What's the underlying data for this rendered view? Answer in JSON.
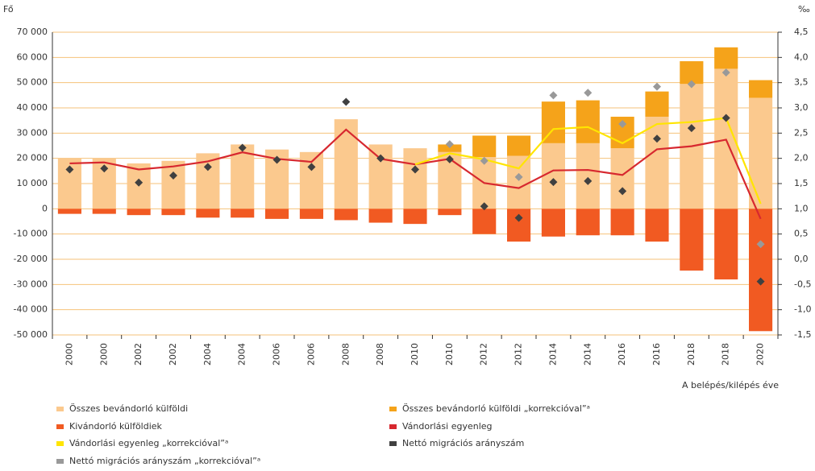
{
  "chart_data": {
    "type": "bar",
    "y_label": "Fő",
    "y2_label": "‰",
    "x_label": "A belépés/kilépés éve",
    "categories": [
      "2000",
      "2000",
      "2002",
      "2002",
      "2004",
      "2004",
      "2006",
      "2006",
      "2008",
      "2008",
      "2010",
      "2010",
      "2012",
      "2012",
      "2014",
      "2014",
      "2016",
      "2016",
      "2018",
      "2018",
      "2020"
    ],
    "ylim": [
      -50000,
      70000
    ],
    "yticks": [
      {
        "value": -50000,
        "label": "-50 000"
      },
      {
        "value": -40000,
        "label": "-40 000"
      },
      {
        "value": -30000,
        "label": "-30 000"
      },
      {
        "value": -20000,
        "label": "-20 000"
      },
      {
        "value": -10000,
        "label": "-10 000"
      },
      0,
      {
        "value": 10000,
        "label": "10 000"
      },
      {
        "value": 20000,
        "label": "20 000"
      },
      {
        "value": 30000,
        "label": "30 000"
      },
      {
        "value": 40000,
        "label": "40 000"
      },
      {
        "value": 50000,
        "label": "50 000"
      },
      {
        "value": 60000,
        "label": "60 000"
      },
      {
        "value": 70000,
        "label": "70 000"
      }
    ],
    "y2lim": [
      -1.5,
      4.5
    ],
    "y2ticks": [
      {
        "value": -1.5,
        "label": "-1,5"
      },
      {
        "value": -1,
        "label": "-1,0"
      },
      {
        "value": -0.5,
        "label": "-0,5"
      },
      {
        "value": 0,
        "label": "0,0"
      },
      {
        "value": 0.5,
        "label": "0,5"
      },
      {
        "value": 1,
        "label": "1,0"
      },
      {
        "value": 1.5,
        "label": "1,5"
      },
      {
        "value": 2,
        "label": "2,0"
      },
      {
        "value": 2.5,
        "label": "2,5"
      },
      {
        "value": 3,
        "label": "3,0"
      },
      {
        "value": 3.5,
        "label": "3,5"
      },
      {
        "value": 4,
        "label": "4,0"
      },
      {
        "value": 4.5,
        "label": "4,5"
      }
    ],
    "grid": true,
    "series": [
      {
        "name": "Összes bevándorló külföldi",
        "kind": "bar",
        "color": "#fbc98e",
        "values": [
          20000,
          20000,
          18000,
          19000,
          22000,
          25500,
          23500,
          22500,
          35500,
          25500,
          24000,
          22500,
          20500,
          21000,
          26000,
          26000,
          24000,
          36500,
          49500,
          55500,
          44000
        ]
      },
      {
        "name": "Összes bevándorló külföldi „korrekcióval”ᵃ",
        "kind": "bar",
        "color": "#f5a31a",
        "values": [
          null,
          null,
          null,
          null,
          null,
          null,
          null,
          null,
          null,
          null,
          null,
          3000,
          8500,
          8000,
          16500,
          17000,
          12500,
          10000,
          9000,
          8500,
          7000
        ]
      },
      {
        "name": "Kivándorló külföldiek",
        "kind": "bar",
        "color": "#f15a22",
        "values": [
          -2000,
          -2000,
          -2500,
          -2500,
          -3500,
          -3500,
          -4000,
          -4000,
          -4500,
          -5500,
          -6000,
          -2500,
          -10000,
          -13000,
          -11000,
          -10500,
          -10500,
          -13000,
          -24500,
          -28000,
          -48500
        ]
      },
      {
        "name": "Vándorlási egyenleg",
        "kind": "line",
        "axis": "y2",
        "color": "#d7282f",
        "values": [
          1.9,
          1.92,
          1.78,
          1.84,
          1.94,
          2.12,
          1.99,
          1.93,
          2.57,
          1.99,
          1.88,
          1.99,
          1.51,
          1.41,
          1.76,
          1.77,
          1.67,
          2.18,
          2.24,
          2.37,
          0.8
        ]
      },
      {
        "name": "Vándorlási egyenleg „korrekcióval”ᵃ",
        "kind": "line",
        "axis": "y2",
        "color": "#ffe500",
        "values": [
          null,
          null,
          null,
          null,
          null,
          null,
          null,
          null,
          null,
          null,
          1.88,
          2.1,
          1.98,
          1.8,
          2.58,
          2.62,
          2.3,
          2.68,
          2.72,
          2.8,
          1.1
        ]
      },
      {
        "name": "Nettó migrációs arányszám",
        "kind": "marker",
        "axis": "y2",
        "color": "#404040",
        "values": [
          1.78,
          1.8,
          1.52,
          1.66,
          1.83,
          2.21,
          1.97,
          1.83,
          3.12,
          2.0,
          1.78,
          1.98,
          1.05,
          0.82,
          1.53,
          1.55,
          1.35,
          2.39,
          2.6,
          2.8,
          -0.44
        ]
      },
      {
        "name": "Nettó migrációs arányszám „korrekcióval”ᵃ",
        "kind": "marker",
        "axis": "y2",
        "color": "#999999",
        "values": [
          null,
          null,
          null,
          null,
          null,
          null,
          null,
          null,
          null,
          null,
          null,
          2.28,
          1.95,
          1.63,
          3.25,
          3.3,
          2.68,
          3.42,
          3.47,
          3.7,
          0.3
        ]
      }
    ]
  }
}
